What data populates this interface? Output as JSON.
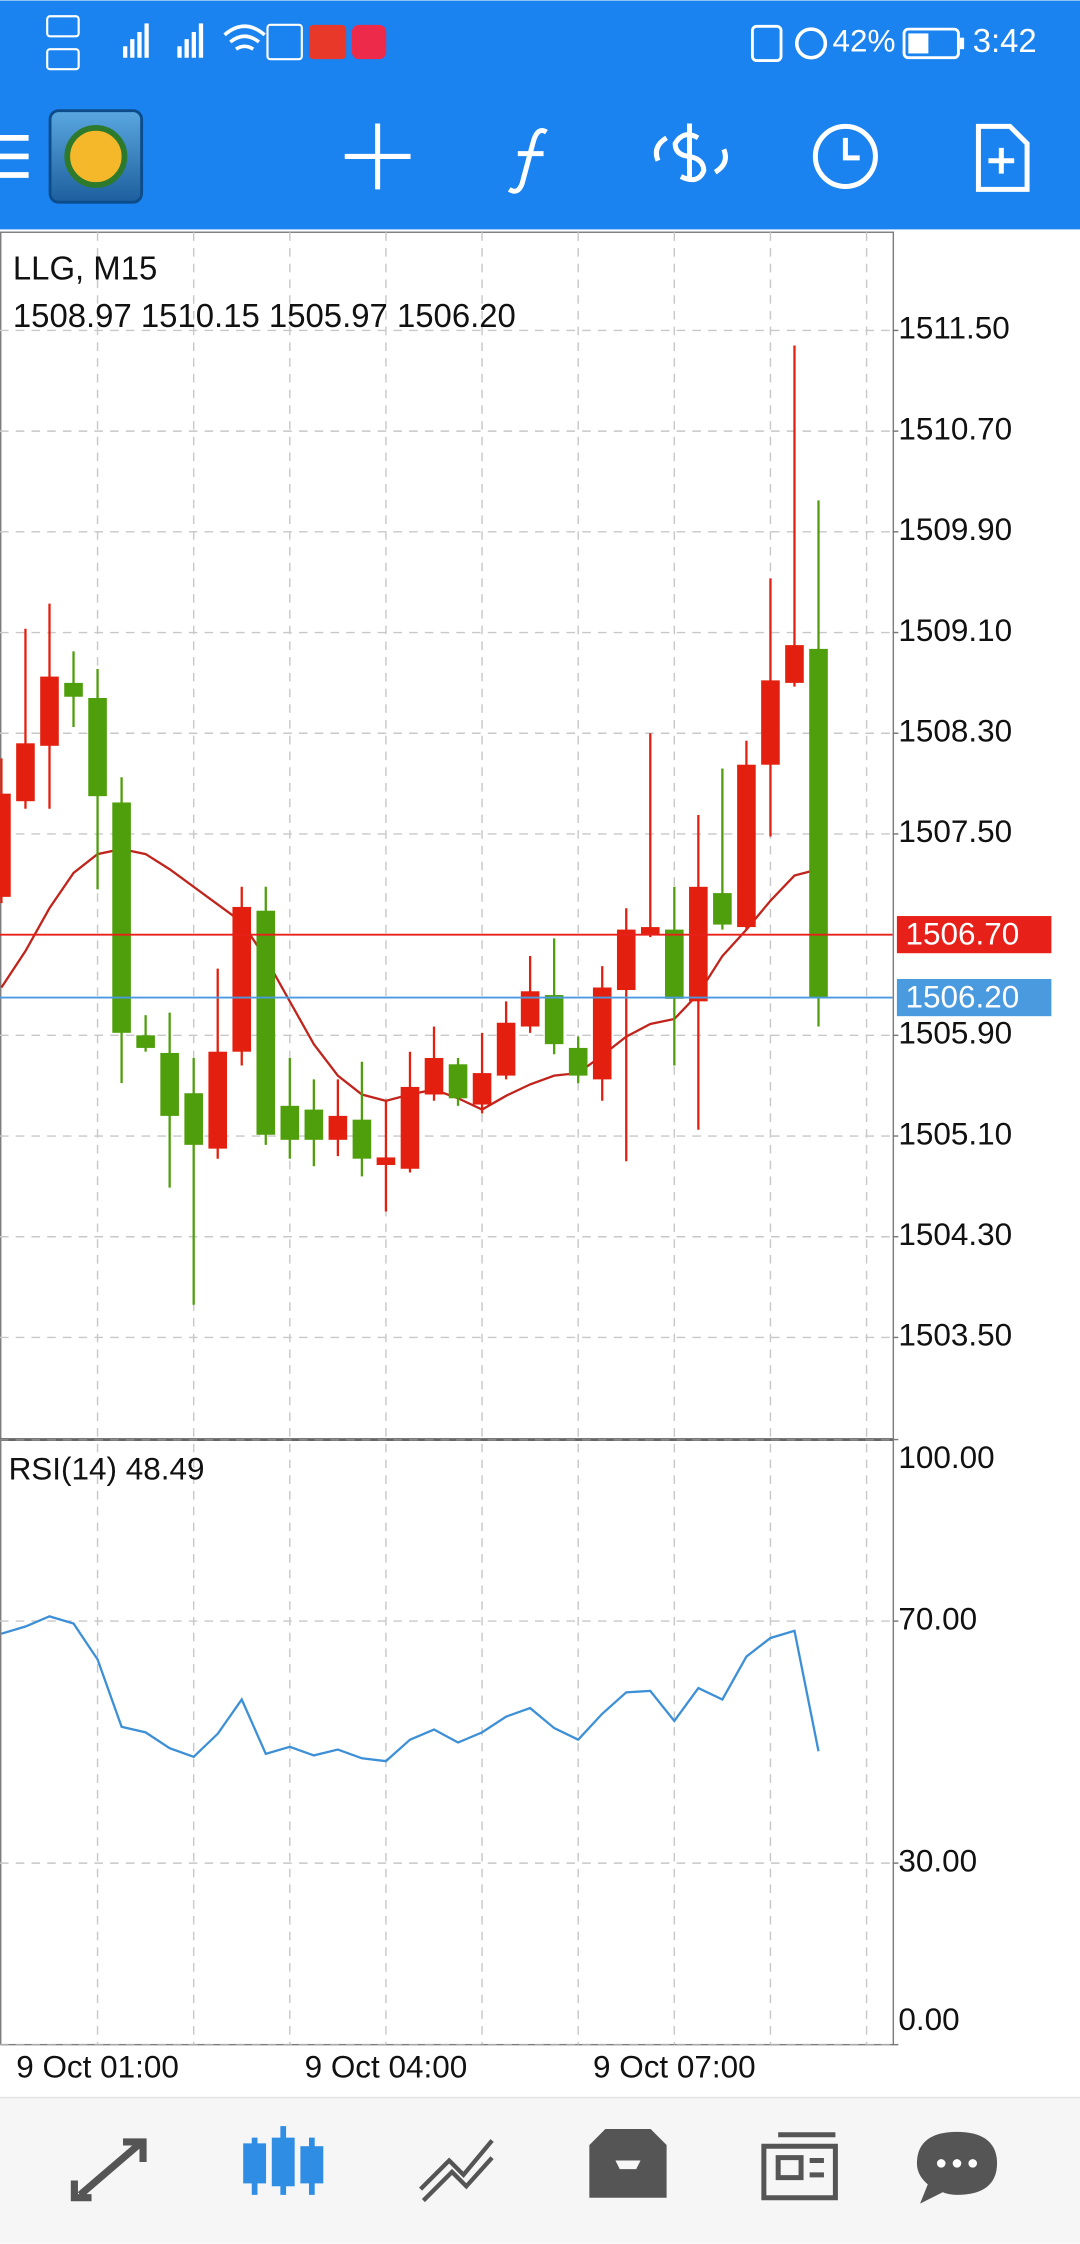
{
  "status_bar": {
    "battery": "42%",
    "time": "3:42"
  },
  "chart_data": [
    {
      "type": "candlestick",
      "title": "LLG, M15",
      "subtitle": "1508.97 1510.15 1505.97 1506.20",
      "categories": [
        null,
        null,
        null,
        null,
        "9 Oct 01:00",
        null,
        null,
        null,
        null,
        null,
        null,
        null,
        null,
        null,
        null,
        null,
        "9 Oct 04:00",
        null,
        null,
        null,
        null,
        null,
        null,
        null,
        null,
        null,
        null,
        null,
        "9 Oct 07:00",
        null,
        null,
        null,
        null,
        null,
        null
      ],
      "open": [
        1507.0,
        1507.76,
        1508.2,
        1508.7,
        1508.58,
        1507.75,
        1505.9,
        1505.76,
        1505.44,
        1505.0,
        1505.77,
        1506.89,
        1505.34,
        1505.31,
        1505.07,
        1505.23,
        1504.87,
        1504.84,
        1505.43,
        1505.67,
        1505.35,
        1505.58,
        1505.97,
        1506.22,
        1505.8,
        1505.55,
        1506.26,
        1506.7,
        1506.74,
        1506.17,
        1507.03,
        1506.76,
        1508.05,
        1508.7,
        1508.97
      ],
      "high": [
        1508.1,
        1509.13,
        1509.33,
        1508.95,
        1508.81,
        1507.95,
        1506.06,
        1506.08,
        1505.72,
        1506.43,
        1507.08,
        1507.08,
        1505.72,
        1505.55,
        1505.55,
        1505.69,
        1505.38,
        1505.77,
        1505.97,
        1505.72,
        1505.92,
        1506.17,
        1506.53,
        1506.67,
        1505.89,
        1506.45,
        1506.91,
        1508.3,
        1507.08,
        1507.65,
        1508.02,
        1508.24,
        1509.53,
        1511.38,
        1510.15
      ],
      "low": [
        1506.95,
        1507.7,
        1507.7,
        1508.35,
        1507.06,
        1505.52,
        1505.77,
        1504.69,
        1503.76,
        1504.92,
        1505.66,
        1505.03,
        1504.92,
        1504.86,
        1504.94,
        1504.78,
        1504.5,
        1504.81,
        1505.38,
        1505.34,
        1505.28,
        1505.55,
        1505.92,
        1505.75,
        1505.52,
        1505.38,
        1504.9,
        1506.68,
        1505.66,
        1505.15,
        1506.74,
        1506.74,
        1507.48,
        1508.67,
        1505.97
      ],
      "close": [
        1507.82,
        1508.22,
        1508.75,
        1508.59,
        1507.8,
        1505.92,
        1505.8,
        1505.26,
        1505.03,
        1505.77,
        1506.92,
        1505.11,
        1505.07,
        1505.07,
        1505.26,
        1504.92,
        1504.93,
        1505.49,
        1505.72,
        1505.4,
        1505.6,
        1506.0,
        1506.25,
        1505.83,
        1505.58,
        1506.28,
        1506.74,
        1506.76,
        1506.19,
        1507.08,
        1506.78,
        1508.05,
        1508.72,
        1509.0,
        1506.2
      ],
      "up_color": "#e3200f",
      "down_color": "#4f9e0c",
      "series": [
        {
          "color": "#c0241c",
          "values": [
            1506.28,
            1506.57,
            1506.91,
            1507.19,
            1507.34,
            1507.38,
            1507.34,
            1507.22,
            1507.08,
            1506.94,
            1506.8,
            1506.51,
            1506.17,
            1505.83,
            1505.58,
            1505.43,
            1505.38,
            1505.43,
            1505.47,
            1505.4,
            1505.31,
            1505.42,
            1505.51,
            1505.58,
            1505.6,
            1505.74,
            1505.89,
            1505.99,
            1506.03,
            1506.23,
            1506.53,
            1506.74,
            1506.97,
            1507.17,
            1507.22
          ]
        }
      ],
      "price_lines": [
        {
          "value": 1506.7,
          "label": "1506.70",
          "color": "#e8201a"
        },
        {
          "value": 1506.2,
          "label": "1506.20",
          "color": "#4a9ae0"
        }
      ],
      "ylim": [
        1502.7,
        1512.28
      ],
      "yticks": [
        {
          "value": 1511.5,
          "label": "1511.50"
        },
        {
          "value": 1510.7,
          "label": "1510.70"
        },
        {
          "value": 1509.9,
          "label": "1509.90"
        },
        {
          "value": 1509.1,
          "label": "1509.10"
        },
        {
          "value": 1508.3,
          "label": "1508.30"
        },
        {
          "value": 1507.5,
          "label": "1507.50"
        },
        {
          "value": 1505.9,
          "label": "1505.90"
        },
        {
          "value": 1505.1,
          "label": "1505.10"
        },
        {
          "value": 1504.3,
          "label": "1504.30"
        },
        {
          "value": 1503.5,
          "label": "1503.50"
        }
      ],
      "grid": true
    },
    {
      "type": "line",
      "title": "RSI(14) 48.49",
      "series": [
        {
          "color": "#3d8fd6",
          "values": [
            67.93,
            69.11,
            70.77,
            69.59,
            63.67,
            52.54,
            51.6,
            48.99,
            47.57,
            51.36,
            57.04,
            48.05,
            49.23,
            47.81,
            48.76,
            47.34,
            46.86,
            50.41,
            52.07,
            49.94,
            51.6,
            54.2,
            55.62,
            52.31,
            50.41,
            54.67,
            58.22,
            58.46,
            53.49,
            58.93,
            57.04,
            64.14,
            67.22,
            68.4,
            48.49
          ]
        }
      ],
      "ylim": [
        0,
        100
      ],
      "yticks": [
        {
          "value": 0,
          "label": "0.00"
        },
        {
          "value": 30,
          "label": "30.00"
        },
        {
          "value": 70,
          "label": "70.00"
        },
        {
          "value": 100,
          "label": "100.00"
        }
      ],
      "grid": true
    }
  ]
}
